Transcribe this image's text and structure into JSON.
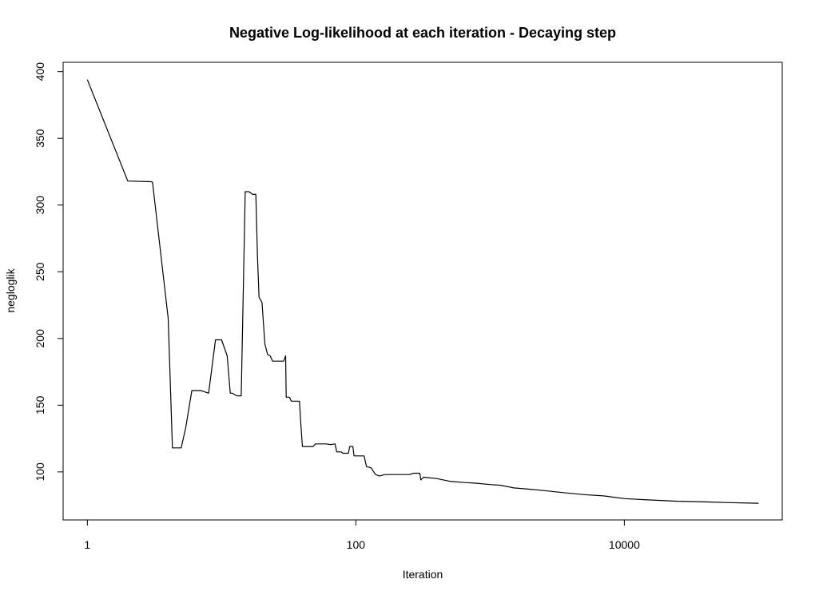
{
  "chart_data": {
    "type": "line",
    "title": "Negative Log-likelihood at each iteration - Decaying step",
    "xlabel": "Iteration",
    "ylabel": "negloglik",
    "x_scale": "log10",
    "xlim": [
      0.66,
      150000
    ],
    "ylim": [
      64,
      407
    ],
    "x_ticks": [
      {
        "value": 1,
        "label": "1"
      },
      {
        "value": 100,
        "label": "100"
      },
      {
        "value": 10000,
        "label": "10000"
      }
    ],
    "y_ticks": [
      {
        "value": 100,
        "label": "100"
      },
      {
        "value": 150,
        "label": "150"
      },
      {
        "value": 200,
        "label": "200"
      },
      {
        "value": 250,
        "label": "250"
      },
      {
        "value": 300,
        "label": "300"
      },
      {
        "value": 350,
        "label": "350"
      },
      {
        "value": 400,
        "label": "400"
      }
    ],
    "grid": false,
    "legend": "none",
    "series": [
      {
        "color": "#000000",
        "points": [
          [
            1,
            394
          ],
          [
            2,
            318
          ],
          [
            3,
            317.5
          ],
          [
            3.06,
            317
          ],
          [
            4,
            215
          ],
          [
            4.3,
            118
          ],
          [
            5,
            118
          ],
          [
            5.4,
            133
          ],
          [
            6,
            161
          ],
          [
            7,
            161
          ],
          [
            8,
            159
          ],
          [
            9,
            199
          ],
          [
            10,
            199
          ],
          [
            11,
            187
          ],
          [
            11.6,
            159
          ],
          [
            12,
            159
          ],
          [
            13,
            157
          ],
          [
            14,
            157
          ],
          [
            15,
            310
          ],
          [
            16,
            310
          ],
          [
            17,
            308
          ],
          [
            18,
            308
          ],
          [
            18.5,
            262
          ],
          [
            19,
            231
          ],
          [
            20,
            227
          ],
          [
            21,
            196
          ],
          [
            22,
            188
          ],
          [
            23,
            187
          ],
          [
            24,
            183
          ],
          [
            27,
            183
          ],
          [
            29,
            183
          ],
          [
            30,
            187
          ],
          [
            30.3,
            156
          ],
          [
            32,
            156
          ],
          [
            33,
            153
          ],
          [
            35,
            153
          ],
          [
            38,
            153
          ],
          [
            39,
            135
          ],
          [
            40,
            119
          ],
          [
            48,
            119
          ],
          [
            50,
            121
          ],
          [
            55,
            121
          ],
          [
            60,
            121
          ],
          [
            65,
            120.5
          ],
          [
            70,
            121
          ],
          [
            72,
            115
          ],
          [
            78,
            115
          ],
          [
            80,
            114
          ],
          [
            88,
            114
          ],
          [
            90,
            119
          ],
          [
            95,
            119
          ],
          [
            97,
            112
          ],
          [
            115,
            112
          ],
          [
            120,
            104
          ],
          [
            130,
            103
          ],
          [
            140,
            98
          ],
          [
            150,
            97
          ],
          [
            165,
            98
          ],
          [
            180,
            98
          ],
          [
            220,
            98
          ],
          [
            250,
            98
          ],
          [
            270,
            99
          ],
          [
            300,
            99
          ],
          [
            305,
            94
          ],
          [
            320,
            96
          ],
          [
            400,
            95
          ],
          [
            500,
            93
          ],
          [
            650,
            92
          ],
          [
            800,
            91.5
          ],
          [
            1000,
            90.5
          ],
          [
            1200,
            90
          ],
          [
            1500,
            88
          ],
          [
            2000,
            87
          ],
          [
            2500,
            86
          ],
          [
            3500,
            84.5
          ],
          [
            5000,
            83
          ],
          [
            7000,
            82
          ],
          [
            10000,
            80
          ],
          [
            15000,
            79
          ],
          [
            25000,
            78
          ],
          [
            40000,
            77.5
          ],
          [
            60000,
            77
          ],
          [
            100000,
            76.5
          ]
        ]
      }
    ]
  }
}
